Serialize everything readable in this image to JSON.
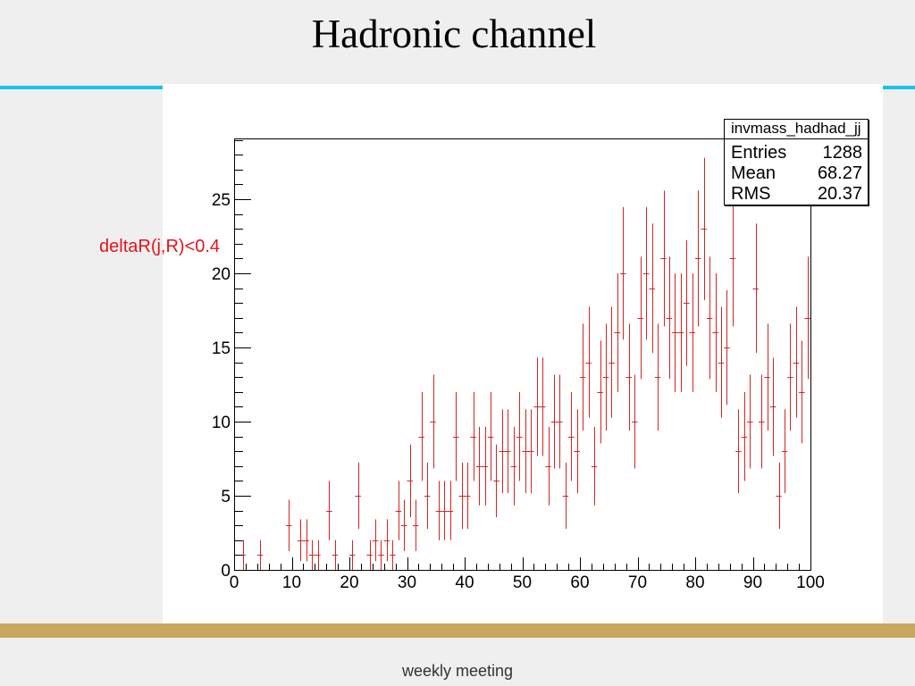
{
  "slide": {
    "title": "Hadronic channel",
    "annotation": "deltaR(j,R)<0.4",
    "footer": "weekly meeting"
  },
  "colors": {
    "slide_background": "#efefef",
    "accent_line": "#18c3e8",
    "footer_bar": "#c8a75e",
    "annotation_text": "#e3141b",
    "histogram": "#d42424"
  },
  "stats_box": {
    "title": "invmass_hadhad_jj",
    "rows": [
      {
        "label": "Entries",
        "value": "1288"
      },
      {
        "label": "Mean",
        "value": "68.27"
      },
      {
        "label": "RMS",
        "value": "20.37"
      }
    ]
  },
  "chart_data": {
    "type": "bar",
    "error_bars": true,
    "grid": false,
    "xlim": [
      0,
      100
    ],
    "ylim": [
      0,
      29.1
    ],
    "x_ticks": [
      0,
      10,
      20,
      30,
      40,
      50,
      60,
      70,
      80,
      90,
      100
    ],
    "y_ticks": [
      0,
      5,
      10,
      15,
      20,
      25
    ],
    "x": [
      0.5,
      1.5,
      2.5,
      3.5,
      4.5,
      5.5,
      6.5,
      7.5,
      8.5,
      9.5,
      10.5,
      11.5,
      12.5,
      13.5,
      14.5,
      15.5,
      16.5,
      17.5,
      18.5,
      19.5,
      20.5,
      21.5,
      22.5,
      23.5,
      24.5,
      25.5,
      26.5,
      27.5,
      28.5,
      29.5,
      30.5,
      31.5,
      32.5,
      33.5,
      34.5,
      35.5,
      36.5,
      37.5,
      38.5,
      39.5,
      40.5,
      41.5,
      42.5,
      43.5,
      44.5,
      45.5,
      46.5,
      47.5,
      48.5,
      49.5,
      50.5,
      51.5,
      52.5,
      53.5,
      54.5,
      55.5,
      56.5,
      57.5,
      58.5,
      59.5,
      60.5,
      61.5,
      62.5,
      63.5,
      64.5,
      65.5,
      66.5,
      67.5,
      68.5,
      69.5,
      70.5,
      71.5,
      72.5,
      73.5,
      74.5,
      75.5,
      76.5,
      77.5,
      78.5,
      79.5,
      80.5,
      81.5,
      82.5,
      83.5,
      84.5,
      85.5,
      86.5,
      87.5,
      88.5,
      89.5,
      90.5,
      91.5,
      92.5,
      93.5,
      94.5,
      95.5,
      96.5,
      97.5,
      98.5,
      99.5
    ],
    "values": [
      0,
      1,
      0,
      0,
      1,
      0,
      0,
      0,
      0,
      3,
      0,
      2,
      2,
      1,
      1,
      0,
      4,
      1,
      0,
      0,
      1,
      5,
      0,
      1,
      2,
      1,
      2,
      1,
      4,
      3,
      6,
      3,
      9,
      5,
      10,
      4,
      4,
      4,
      9,
      5,
      5,
      9,
      7,
      7,
      9,
      6,
      8,
      8,
      7,
      9,
      8,
      8,
      11,
      11,
      7,
      10,
      10,
      5,
      9,
      8,
      13,
      14,
      7,
      12,
      13,
      14,
      16,
      20,
      13,
      10,
      17,
      20,
      19,
      13,
      21,
      17,
      16,
      16,
      18,
      16,
      21,
      23,
      17,
      16,
      14,
      15,
      21,
      8,
      9,
      10,
      19,
      10,
      13,
      11,
      5,
      8,
      13,
      14,
      12,
      17
    ]
  }
}
